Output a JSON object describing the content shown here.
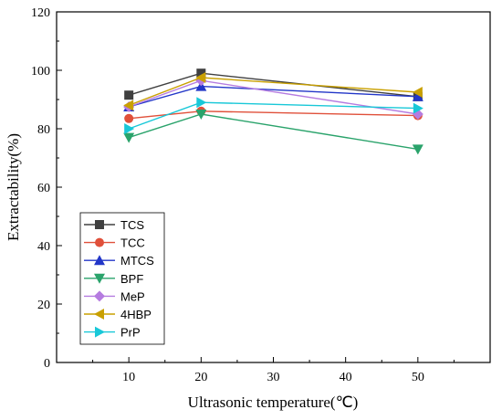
{
  "chart_data": {
    "type": "line",
    "title": "",
    "xlabel": "Ultrasonic temperature(℃)",
    "ylabel": "Extractability(%)",
    "xlim": [
      0,
      60
    ],
    "ylim": [
      0,
      120
    ],
    "xticks": [
      10,
      20,
      30,
      40,
      50
    ],
    "yticks": [
      0,
      20,
      40,
      60,
      80,
      100,
      120
    ],
    "grid": false,
    "legend_position": "bottom-left",
    "x": [
      10,
      20,
      50
    ],
    "series": [
      {
        "name": "TCS",
        "values": [
          91.5,
          99.0,
          91.0
        ],
        "color": "#404040",
        "marker": "square"
      },
      {
        "name": "TCC",
        "values": [
          83.5,
          86.0,
          84.5
        ],
        "color": "#e0503a",
        "marker": "circle"
      },
      {
        "name": "MTCS",
        "values": [
          87.5,
          94.5,
          91.0
        ],
        "color": "#2236c8",
        "marker": "triangle-up"
      },
      {
        "name": "BPF",
        "values": [
          77.0,
          85.0,
          73.0
        ],
        "color": "#2aa36b",
        "marker": "triangle-down"
      },
      {
        "name": "MeP",
        "values": [
          87.5,
          96.5,
          85.0
        ],
        "color": "#b57ce0",
        "marker": "diamond"
      },
      {
        "name": "4HBP",
        "values": [
          88.0,
          97.5,
          92.5
        ],
        "color": "#c9a000",
        "marker": "triangle-left"
      },
      {
        "name": "PrP",
        "values": [
          80.0,
          89.0,
          87.0
        ],
        "color": "#18c8d8",
        "marker": "triangle-right"
      }
    ]
  }
}
